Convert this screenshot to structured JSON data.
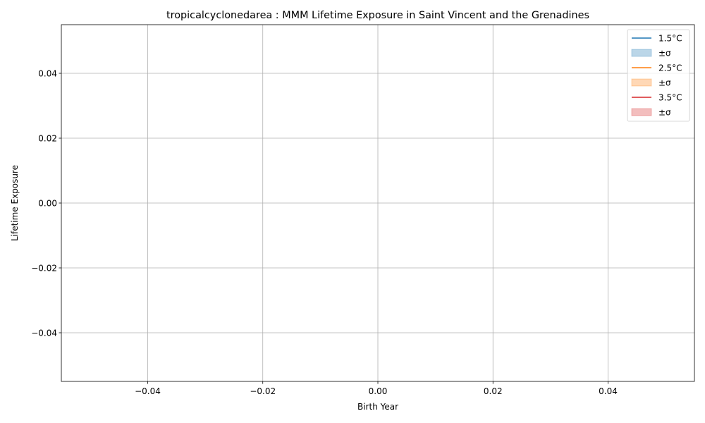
{
  "chart_data": {
    "type": "line",
    "title": "tropicalcyclonedarea : MMM Lifetime Exposure in Saint Vincent and the Grenadines",
    "xlabel": "Birth Year",
    "ylabel": "Lifetime Exposure",
    "xlim": [
      -0.055,
      0.055
    ],
    "ylim": [
      -0.055,
      0.055
    ],
    "x_ticks": [
      -0.04,
      -0.02,
      0.0,
      0.02,
      0.04
    ],
    "x_tick_labels": [
      "−0.04",
      "−0.02",
      "0.00",
      "0.02",
      "0.04"
    ],
    "y_ticks": [
      -0.04,
      -0.02,
      0.0,
      0.02,
      0.04
    ],
    "y_tick_labels": [
      "−0.04",
      "−0.02",
      "0.00",
      "0.02",
      "0.04"
    ],
    "grid": true,
    "legend_position": "top-right",
    "legend": [
      {
        "label": "1.5°C",
        "kind": "line",
        "color": "#1f77b4"
      },
      {
        "label": "±σ",
        "kind": "band",
        "color": "#1f77b4"
      },
      {
        "label": "2.5°C",
        "kind": "line",
        "color": "#ff7f0e"
      },
      {
        "label": "±σ",
        "kind": "band",
        "color": "#ff7f0e"
      },
      {
        "label": "3.5°C",
        "kind": "line",
        "color": "#d62728"
      },
      {
        "label": "±σ",
        "kind": "band",
        "color": "#d62728"
      }
    ],
    "series": [
      {
        "name": "1.5°C",
        "color": "#1f77b4",
        "x": [],
        "y": []
      },
      {
        "name": "2.5°C",
        "color": "#ff7f0e",
        "x": [],
        "y": []
      },
      {
        "name": "3.5°C",
        "color": "#d62728",
        "x": [],
        "y": []
      }
    ]
  }
}
